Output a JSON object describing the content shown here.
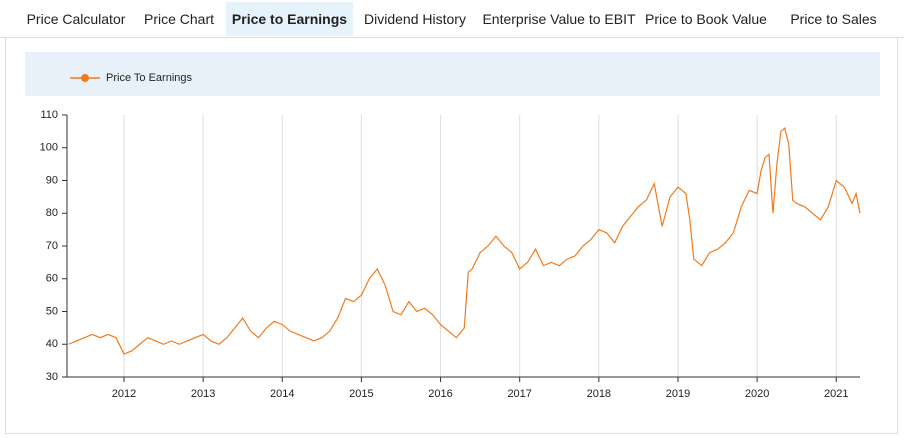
{
  "tabs": [
    "Price Calculator",
    "Price Chart",
    "Price to Earnings",
    "Dividend History",
    "Enterprise Value to EBIT",
    "Price to Book Value",
    "Price to Sales"
  ],
  "active_tab": 2,
  "chart_data": {
    "type": "line",
    "x": [
      2011.3,
      2011.4,
      2011.5,
      2011.6,
      2011.7,
      2011.8,
      2011.9,
      2012.0,
      2012.1,
      2012.2,
      2012.3,
      2012.4,
      2012.5,
      2012.6,
      2012.7,
      2012.8,
      2012.9,
      2013.0,
      2013.1,
      2013.2,
      2013.3,
      2013.4,
      2013.5,
      2013.6,
      2013.7,
      2013.8,
      2013.9,
      2014.0,
      2014.1,
      2014.2,
      2014.3,
      2014.4,
      2014.5,
      2014.6,
      2014.7,
      2014.8,
      2014.9,
      2015.0,
      2015.1,
      2015.2,
      2015.3,
      2015.4,
      2015.5,
      2015.6,
      2015.7,
      2015.8,
      2015.9,
      2016.0,
      2016.1,
      2016.2,
      2016.3,
      2016.35,
      2016.4,
      2016.5,
      2016.6,
      2016.7,
      2016.8,
      2016.9,
      2017.0,
      2017.1,
      2017.2,
      2017.3,
      2017.4,
      2017.5,
      2017.6,
      2017.7,
      2017.8,
      2017.9,
      2018.0,
      2018.1,
      2018.2,
      2018.3,
      2018.4,
      2018.5,
      2018.6,
      2018.7,
      2018.8,
      2018.9,
      2019.0,
      2019.1,
      2019.15,
      2019.2,
      2019.3,
      2019.4,
      2019.5,
      2019.6,
      2019.7,
      2019.8,
      2019.9,
      2020.0,
      2020.05,
      2020.1,
      2020.15,
      2020.2,
      2020.25,
      2020.3,
      2020.35,
      2020.4,
      2020.45,
      2020.5,
      2020.6,
      2020.7,
      2020.8,
      2020.9,
      2021.0,
      2021.1,
      2021.2,
      2021.25,
      2021.3
    ],
    "series": [
      {
        "name": "Price To Earnings",
        "color": "#f07b1d",
        "values": [
          40,
          41,
          42,
          43,
          42,
          43,
          42,
          37,
          38,
          40,
          42,
          41,
          40,
          41,
          40,
          41,
          42,
          43,
          41,
          40,
          42,
          45,
          48,
          44,
          42,
          45,
          47,
          46,
          44,
          43,
          42,
          41,
          42,
          44,
          48,
          54,
          53,
          55,
          60,
          63,
          58,
          50,
          49,
          53,
          50,
          51,
          49,
          46,
          44,
          42,
          45,
          62,
          63,
          68,
          70,
          73,
          70,
          68,
          63,
          65,
          69,
          64,
          65,
          64,
          66,
          67,
          70,
          72,
          75,
          74,
          71,
          76,
          79,
          82,
          84,
          89,
          76,
          85,
          88,
          86,
          78,
          66,
          64,
          68,
          69,
          71,
          74,
          82,
          87,
          86,
          93,
          97,
          98,
          80,
          95,
          105,
          106,
          101,
          84,
          83,
          82,
          80,
          78,
          82,
          90,
          88,
          83,
          86,
          80
        ]
      }
    ],
    "xlim": [
      2011.28,
      2021.3
    ],
    "xticks": [
      2012,
      2013,
      2014,
      2015,
      2016,
      2017,
      2018,
      2019,
      2020,
      2021
    ],
    "ylim": [
      30,
      110
    ],
    "yticks": [
      30,
      40,
      50,
      60,
      70,
      80,
      90,
      100,
      110
    ],
    "grid": "x",
    "legend": "top-left"
  }
}
